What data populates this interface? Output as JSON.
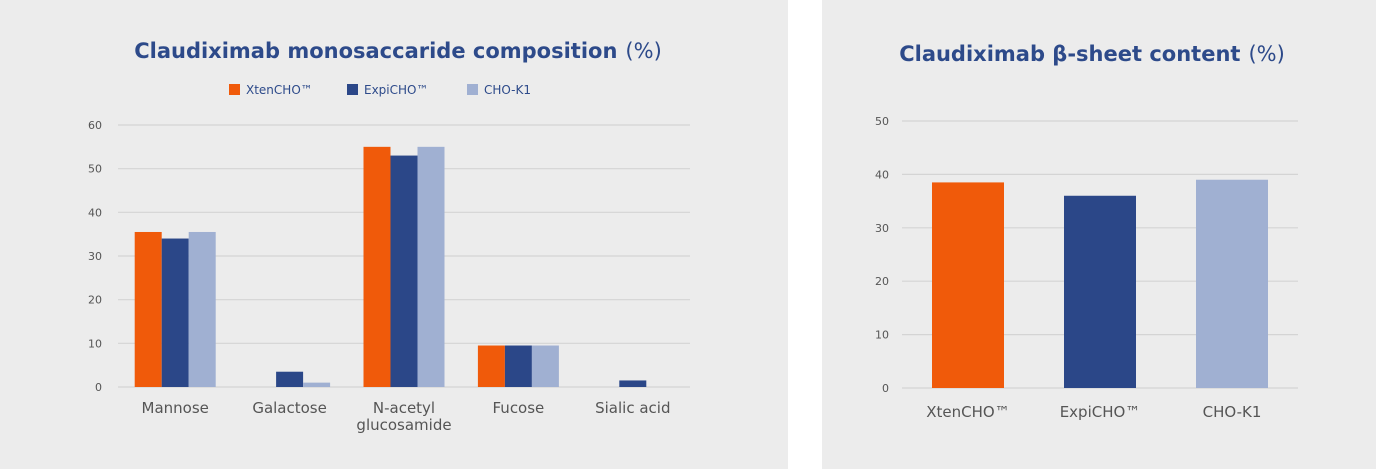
{
  "colors": {
    "xten": "#f05a0a",
    "expi": "#2b4788",
    "cho": "#a0b0d2"
  },
  "chart_data": [
    {
      "type": "bar",
      "title": "Claudiximab monosaccaride composition",
      "title_unit": "(%)",
      "categories": [
        "Mannose",
        "Galactose",
        "N-acetyl glucosamide",
        "Fucose",
        "Sialic acid"
      ],
      "category_lines": [
        [
          "Mannose"
        ],
        [
          "Galactose"
        ],
        [
          "N-acetyl",
          "glucosamide"
        ],
        [
          "Fucose"
        ],
        [
          "Sialic acid"
        ]
      ],
      "series": [
        {
          "name": "XtenCHO™",
          "color": "#f05a0a",
          "values": [
            35.5,
            0,
            55,
            9.5,
            0
          ]
        },
        {
          "name": "ExpiCHO™",
          "color": "#2b4788",
          "values": [
            34,
            3.5,
            53,
            9.5,
            1.5
          ]
        },
        {
          "name": "CHO-K1",
          "color": "#a0b0d2",
          "values": [
            35.5,
            1,
            55,
            9.5,
            0
          ]
        }
      ],
      "ylim": [
        0,
        60
      ],
      "yticks": [
        0,
        10,
        20,
        30,
        40,
        50,
        60
      ],
      "legend": "top",
      "grid": true
    },
    {
      "type": "bar",
      "title": "Claudiximab β-sheet content",
      "title_unit": "(%)",
      "categories": [
        "XtenCHO™",
        "ExpiCHO™",
        "CHO-K1"
      ],
      "category_lines": [
        [
          "XtenCHO™"
        ],
        [
          "ExpiCHO™"
        ],
        [
          "CHO-K1"
        ]
      ],
      "values": [
        38.5,
        36,
        39
      ],
      "colors": [
        "#f05a0a",
        "#2b4788",
        "#a0b0d2"
      ],
      "ylim": [
        0,
        50
      ],
      "yticks": [
        0,
        10,
        20,
        30,
        40,
        50
      ],
      "grid": true
    }
  ]
}
